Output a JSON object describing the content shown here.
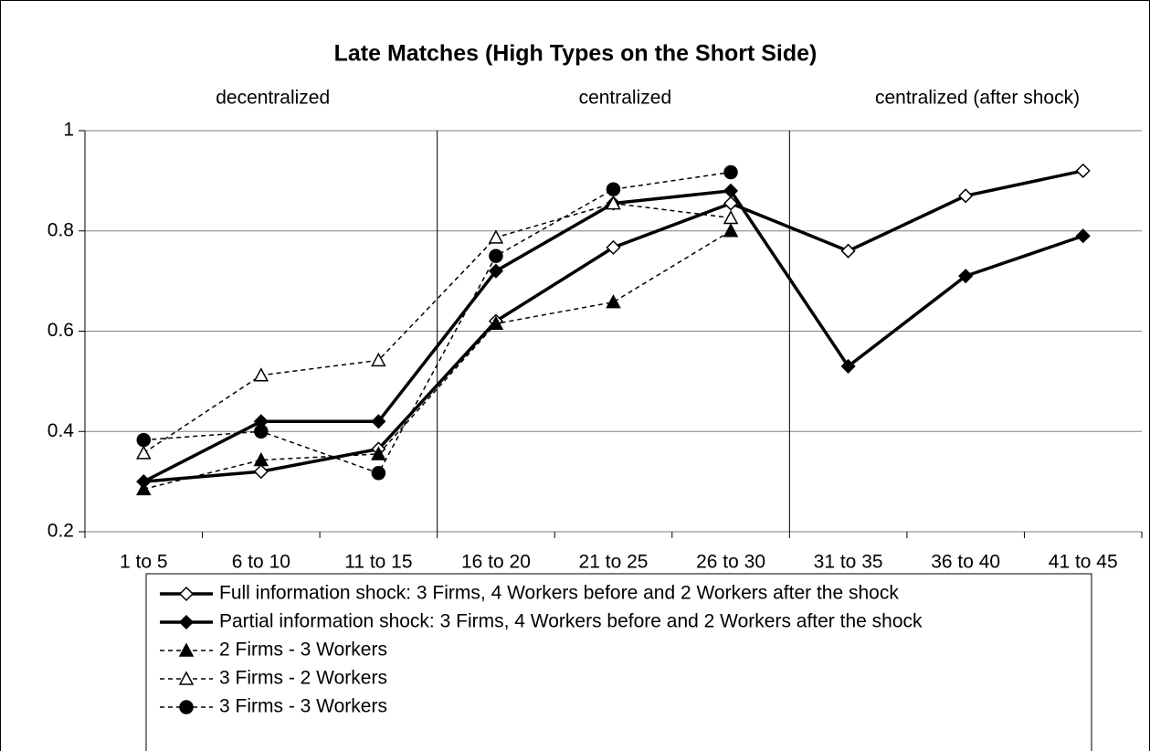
{
  "chart_data": {
    "type": "line",
    "title": "Late Matches (High Types on the Short Side)",
    "annotations": [
      "decentralized",
      "centralized",
      "centralized (after shock)"
    ],
    "categories": [
      "1 to 5",
      "6 to 10",
      "11 to 15",
      "16 to 20",
      "21 to 25",
      "26 to 30",
      "31 to 35",
      "36 to 40",
      "41 to 45"
    ],
    "ylim": [
      0.2,
      1
    ],
    "yticks": [
      0.2,
      0.4,
      0.6,
      0.8,
      1
    ],
    "grid": true,
    "series": [
      {
        "name": "Full information shock: 3 Firms, 4 Workers before and 2 Workers after the shock",
        "color": "#000000",
        "marker": "diamond-open",
        "dash": false,
        "values": [
          0.3,
          0.32,
          0.365,
          0.62,
          0.767,
          0.855,
          0.76,
          0.87,
          0.92
        ]
      },
      {
        "name": "Partial information shock: 3 Firms, 4 Workers before and 2 Workers after the shock",
        "color": "#000000",
        "marker": "diamond-filled",
        "dash": false,
        "values": [
          0.3,
          0.42,
          0.42,
          0.72,
          0.855,
          0.88,
          0.53,
          0.71,
          0.79
        ]
      },
      {
        "name": "2 Firms - 3 Workers",
        "color": "#000000",
        "marker": "triangle-filled",
        "dash": true,
        "values": [
          0.285,
          0.343,
          0.355,
          0.615,
          0.658,
          0.8,
          null,
          null,
          null
        ]
      },
      {
        "name": "3 Firms - 2 Workers",
        "color": "#000000",
        "marker": "triangle-open",
        "dash": true,
        "values": [
          0.357,
          0.512,
          0.542,
          0.787,
          0.855,
          0.826,
          null,
          null,
          null
        ]
      },
      {
        "name": "3 Firms - 3 Workers",
        "color": "#000000",
        "marker": "circle-filled",
        "dash": true,
        "values": [
          0.383,
          0.4,
          0.317,
          0.75,
          0.883,
          0.917,
          null,
          null,
          null
        ]
      }
    ]
  }
}
